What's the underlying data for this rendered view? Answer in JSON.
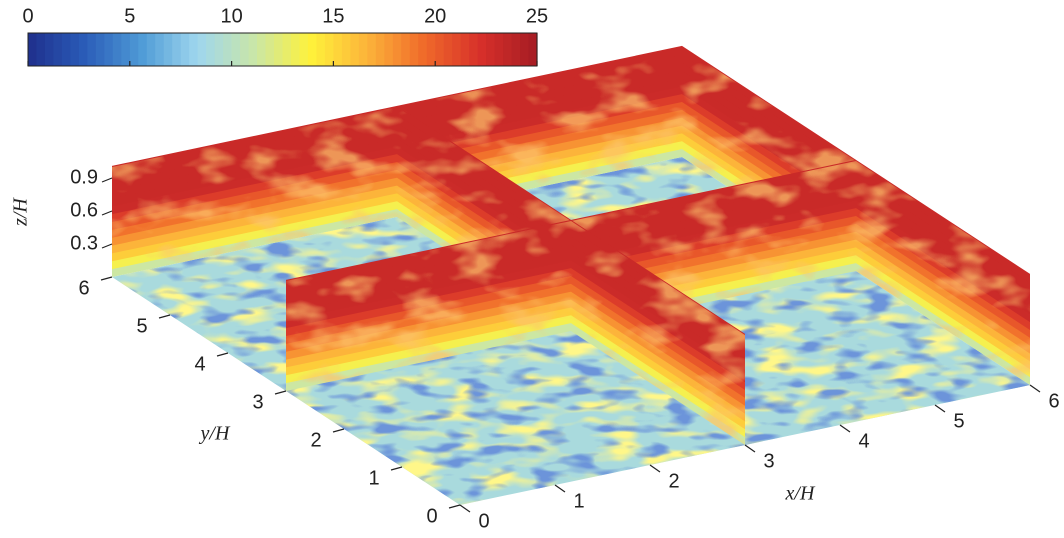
{
  "chart_data": {
    "type": "surface3d",
    "colorbar": {
      "lim": [
        0,
        25
      ],
      "ticks": [
        0,
        5,
        10,
        15,
        20,
        25
      ]
    },
    "colormap": [
      "#1f2f8c",
      "#2a5cb8",
      "#4e9ad6",
      "#9fd6ee",
      "#c9e6a8",
      "#fff23a",
      "#fcb33a",
      "#f06a2a",
      "#d7302a",
      "#a51c24"
    ],
    "xlabel": "x/H",
    "ylabel": "y/H",
    "zlabel": "z/H",
    "xlim": [
      0,
      6
    ],
    "xticks": [
      0,
      1,
      2,
      3,
      4,
      5,
      6
    ],
    "ylim": [
      0,
      6
    ],
    "yticks": [
      0,
      1,
      2,
      3,
      4,
      5,
      6
    ],
    "zlim": [
      0,
      1
    ],
    "zticks": [
      0.3,
      0.6,
      0.9
    ]
  }
}
